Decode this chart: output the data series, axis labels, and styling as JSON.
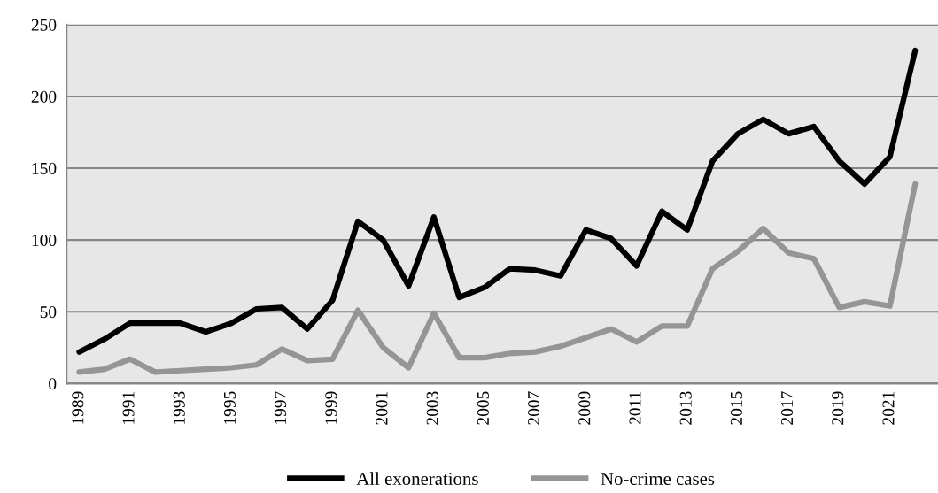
{
  "chart_data": {
    "type": "line",
    "x": [
      1989,
      1990,
      1991,
      1992,
      1993,
      1994,
      1995,
      1996,
      1997,
      1998,
      1999,
      2000,
      2001,
      2002,
      2003,
      2004,
      2005,
      2006,
      2007,
      2008,
      2009,
      2010,
      2011,
      2012,
      2013,
      2014,
      2015,
      2016,
      2017,
      2018,
      2019,
      2020,
      2021,
      2022
    ],
    "series": [
      {
        "name": "All exonerations",
        "color": "#000000",
        "values": [
          22,
          31,
          42,
          42,
          42,
          36,
          42,
          52,
          53,
          38,
          58,
          113,
          100,
          68,
          116,
          60,
          67,
          80,
          79,
          75,
          107,
          101,
          82,
          120,
          107,
          155,
          174,
          184,
          174,
          179,
          155,
          139,
          158,
          232
        ]
      },
      {
        "name": "No-crime cases",
        "color": "#959595",
        "values": [
          8,
          10,
          17,
          8,
          9,
          10,
          11,
          13,
          24,
          16,
          17,
          51,
          25,
          11,
          49,
          18,
          18,
          21,
          22,
          26,
          32,
          38,
          29,
          40,
          40,
          80,
          92,
          108,
          91,
          87,
          53,
          57,
          54,
          139
        ]
      }
    ],
    "xlim": [
      1988.5,
      2022.9
    ],
    "xticks": [
      1989,
      1991,
      1993,
      1995,
      1997,
      1999,
      2001,
      2003,
      2005,
      2007,
      2009,
      2011,
      2013,
      2015,
      2017,
      2019,
      2021
    ],
    "ylim": [
      0,
      250
    ],
    "yticks": [
      0,
      50,
      100,
      150,
      200,
      250
    ],
    "grid": "y",
    "legend": "bottom",
    "line_style": "solid",
    "marker": "none"
  }
}
